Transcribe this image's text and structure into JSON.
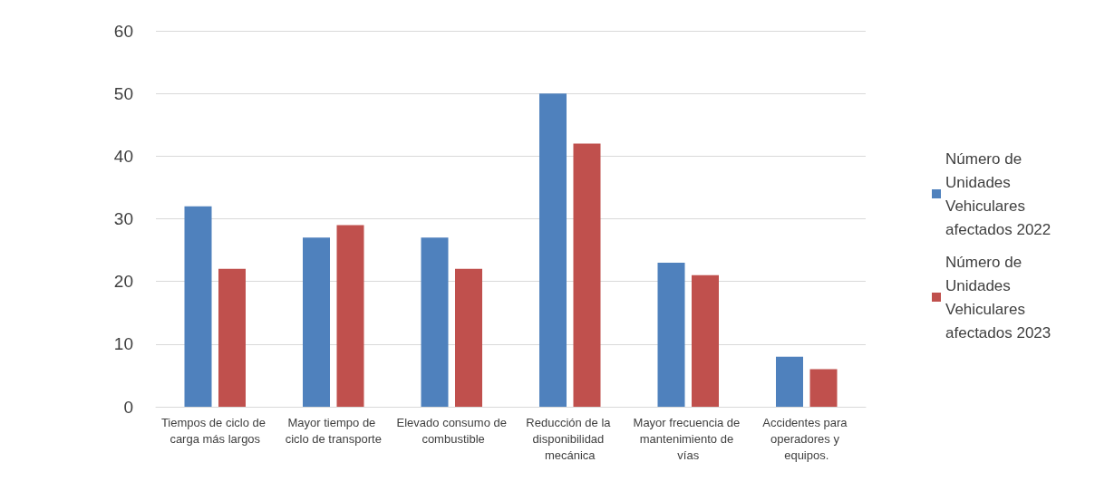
{
  "chart_data": {
    "type": "bar",
    "categories": [
      "Tiempos de ciclo de carga más largos",
      "Mayor tiempo de ciclo de transporte",
      "Elevado consumo de combustible",
      "Reducción de la disponibilidad mecánica",
      "Mayor frecuencia de mantenimiento de vías",
      "Accidentes para operadores y equipos."
    ],
    "series": [
      {
        "name": "Número de Unidades Vehiculares afectados 2022",
        "color": "#4f81bd",
        "values": [
          32,
          27,
          27,
          50,
          23,
          8
        ]
      },
      {
        "name": "Número de Unidades Vehiculares afectados 2023",
        "color": "#c0504d",
        "values": [
          22,
          29,
          22,
          42,
          21,
          6
        ]
      }
    ],
    "ylim": [
      0,
      60
    ],
    "yticks": [
      0,
      10,
      20,
      30,
      40,
      50,
      60
    ],
    "grid": "y",
    "legend": "right"
  }
}
